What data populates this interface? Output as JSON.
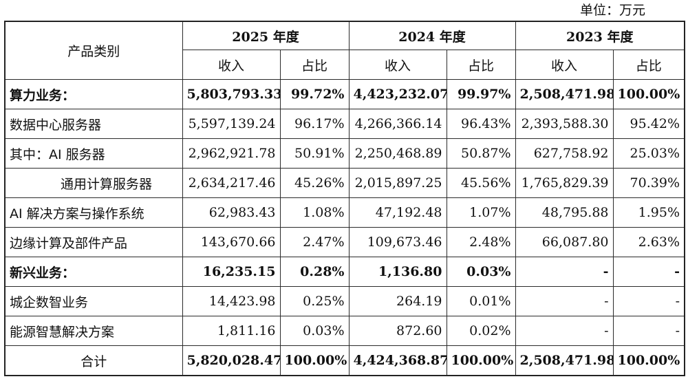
{
  "unit_label": "单位：万元",
  "header": {
    "category": "产品类别",
    "years": [
      "2025 年度",
      "2024 年度",
      "2023 年度"
    ],
    "revenue": "收入",
    "share": "占比"
  },
  "rows": [
    {
      "label": "算力业务：",
      "bold": true,
      "indent": false,
      "v": [
        "5,803,793.33",
        "99.72%",
        "4,423,232.07",
        "99.97%",
        "2,508,471.98",
        "100.00%"
      ]
    },
    {
      "label": "数据中心服务器",
      "bold": false,
      "indent": false,
      "v": [
        "5,597,139.24",
        "96.17%",
        "4,266,366.14",
        "96.43%",
        "2,393,588.30",
        "95.42%"
      ]
    },
    {
      "label": "其中：AI 服务器",
      "bold": false,
      "indent": false,
      "v": [
        "2,962,921.78",
        "50.91%",
        "2,250,468.89",
        "50.87%",
        "627,758.92",
        "25.03%"
      ]
    },
    {
      "label": "通用计算服务器",
      "bold": false,
      "indent": true,
      "v": [
        "2,634,217.46",
        "45.26%",
        "2,015,897.25",
        "45.56%",
        "1,765,829.39",
        "70.39%"
      ]
    },
    {
      "label": "AI 解决方案与操作系统",
      "bold": false,
      "indent": false,
      "v": [
        "62,983.43",
        "1.08%",
        "47,192.48",
        "1.07%",
        "48,795.88",
        "1.95%"
      ]
    },
    {
      "label": "边缘计算及部件产品",
      "bold": false,
      "indent": false,
      "v": [
        "143,670.66",
        "2.47%",
        "109,673.46",
        "2.48%",
        "66,087.80",
        "2.63%"
      ]
    },
    {
      "label": "新兴业务：",
      "bold": true,
      "indent": false,
      "v": [
        "16,235.15",
        "0.28%",
        "1,136.80",
        "0.03%",
        "-",
        "-"
      ]
    },
    {
      "label": "城企数智业务",
      "bold": false,
      "indent": false,
      "v": [
        "14,423.98",
        "0.25%",
        "264.19",
        "0.01%",
        "-",
        "-"
      ]
    },
    {
      "label": "能源智慧解决方案",
      "bold": false,
      "indent": false,
      "v": [
        "1,811.16",
        "0.03%",
        "872.60",
        "0.02%",
        "-",
        "-"
      ]
    }
  ],
  "total": {
    "label": "合计",
    "v": [
      "5,820,028.47",
      "100.00%",
      "4,424,368.87",
      "100.00%",
      "2,508,471.98",
      "100.00%"
    ]
  }
}
